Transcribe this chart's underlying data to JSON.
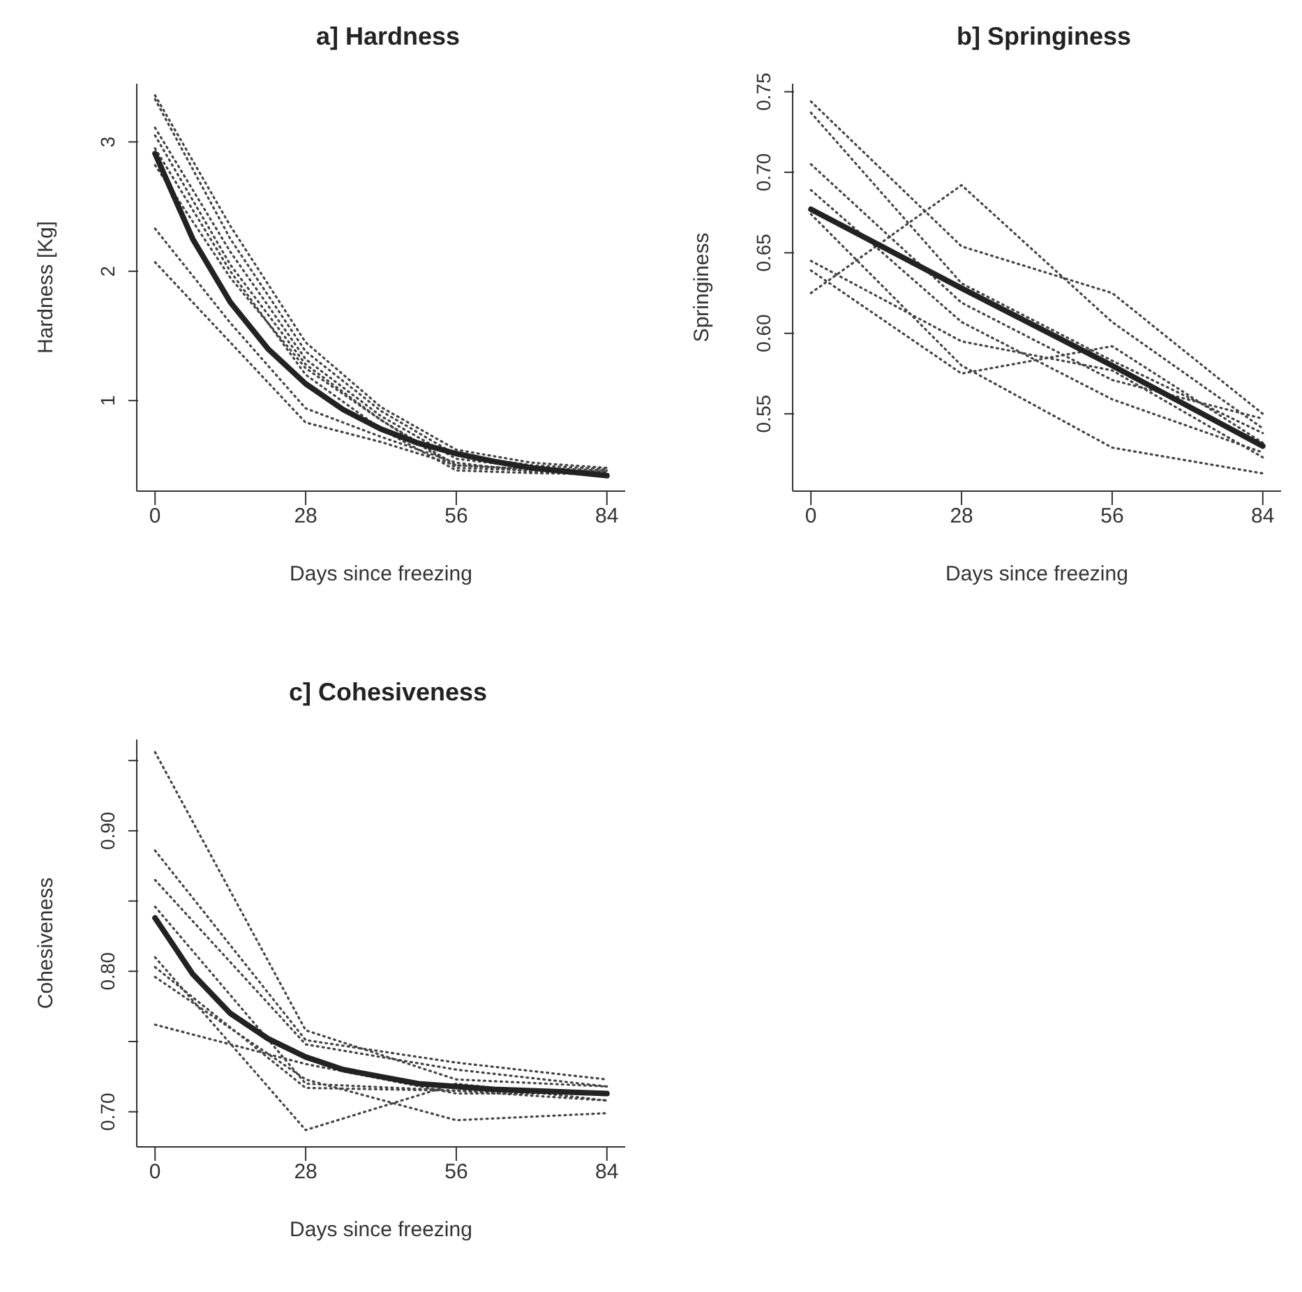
{
  "chart_data": [
    {
      "type": "line",
      "title": "a] Hardness",
      "xlabel": "Days since freezing",
      "ylabel": "Hardness [Kg]",
      "xlim": [
        -3.4,
        87.4
      ],
      "xticks": [
        0,
        28,
        56,
        84
      ],
      "ylim": [
        0.3,
        3.45
      ],
      "yticks": [
        1,
        2,
        3
      ],
      "marker": "none",
      "line_style": "dotted",
      "series": [
        {
          "color": "#444444",
          "x": [
            0,
            14,
            28,
            42,
            56,
            70,
            84
          ],
          "values": [
            3.36,
            2.35,
            1.45,
            0.95,
            0.62,
            0.52,
            0.48
          ]
        },
        {
          "color": "#444444",
          "x": [
            0,
            14,
            28,
            42,
            56,
            70,
            84
          ],
          "values": [
            3.33,
            2.25,
            1.38,
            0.92,
            0.58,
            0.5,
            0.47
          ]
        },
        {
          "color": "#444444",
          "x": [
            0,
            14,
            28,
            42,
            56,
            70,
            84
          ],
          "values": [
            3.11,
            2.15,
            1.32,
            0.88,
            0.55,
            0.48,
            0.46
          ]
        },
        {
          "color": "#444444",
          "x": [
            0,
            14,
            28,
            42,
            56,
            70,
            84
          ],
          "values": [
            3.05,
            2.05,
            1.28,
            0.85,
            0.5,
            0.47,
            0.45
          ]
        },
        {
          "color": "#444444",
          "x": [
            0,
            14,
            28,
            42,
            56,
            70,
            84
          ],
          "values": [
            2.82,
            1.95,
            1.25,
            0.85,
            0.48,
            0.46,
            0.44
          ]
        },
        {
          "color": "#444444",
          "x": [
            0,
            14,
            28,
            42,
            56,
            70,
            84
          ],
          "values": [
            2.95,
            2.0,
            1.2,
            0.78,
            0.46,
            0.44,
            0.43
          ]
        },
        {
          "color": "#444444",
          "x": [
            0,
            14,
            28,
            42,
            56,
            70,
            84
          ],
          "values": [
            2.33,
            1.6,
            0.94,
            0.72,
            0.52,
            0.45,
            0.44
          ]
        },
        {
          "color": "#444444",
          "x": [
            0,
            14,
            28,
            42,
            56,
            70,
            84
          ],
          "values": [
            2.07,
            1.45,
            0.83,
            0.68,
            0.5,
            0.47,
            0.45
          ]
        },
        {
          "color": "#222222",
          "line_style": "solid",
          "x": [
            0,
            7,
            14,
            21,
            28,
            35,
            42,
            49,
            56,
            63,
            70,
            77,
            84
          ],
          "values": [
            2.91,
            2.25,
            1.76,
            1.4,
            1.13,
            0.93,
            0.78,
            0.67,
            0.59,
            0.53,
            0.48,
            0.45,
            0.42
          ]
        }
      ]
    },
    {
      "type": "line",
      "title": "b] Springiness",
      "xlabel": "Days since freezing",
      "ylabel": "Springiness",
      "xlim": [
        -3.4,
        87.4
      ],
      "xticks": [
        0,
        28,
        56,
        84
      ],
      "ylim": [
        0.502,
        0.755
      ],
      "yticks": [
        0.55,
        {
          "value": 0.6,
          "label": "0.60"
        },
        0.65,
        {
          "value": 0.7,
          "label": "0.70"
        },
        0.75
      ],
      "marker": "none",
      "line_style": "dotted",
      "series": [
        {
          "color": "#444444",
          "x": [
            0,
            28,
            56,
            84
          ],
          "values": [
            0.744,
            0.654,
            0.625,
            0.55
          ]
        },
        {
          "color": "#444444",
          "x": [
            0,
            28,
            56,
            84
          ],
          "values": [
            0.737,
            0.631,
            0.583,
            0.538
          ]
        },
        {
          "color": "#444444",
          "x": [
            0,
            28,
            56,
            84
          ],
          "values": [
            0.705,
            0.619,
            0.571,
            0.547
          ]
        },
        {
          "color": "#444444",
          "x": [
            0,
            28,
            56,
            84
          ],
          "values": [
            0.689,
            0.607,
            0.559,
            0.526
          ]
        },
        {
          "color": "#444444",
          "x": [
            0,
            28,
            56,
            84
          ],
          "values": [
            0.674,
            0.58,
            0.529,
            0.513
          ]
        },
        {
          "color": "#444444",
          "x": [
            0,
            28,
            56,
            84
          ],
          "values": [
            0.625,
            0.692,
            0.607,
            0.541
          ]
        },
        {
          "color": "#444444",
          "x": [
            0,
            28,
            56,
            84
          ],
          "values": [
            0.645,
            0.595,
            0.577,
            0.523
          ]
        },
        {
          "color": "#444444",
          "x": [
            0,
            28,
            56,
            84
          ],
          "values": [
            0.639,
            0.575,
            0.592,
            0.532
          ]
        },
        {
          "color": "#222222",
          "line_style": "solid",
          "x": [
            0,
            28,
            56,
            84
          ],
          "values": [
            0.677,
            0.628,
            0.58,
            0.53
          ]
        }
      ]
    },
    {
      "type": "line",
      "title": "c] Cohesiveness",
      "xlabel": "Days since freezing",
      "ylabel": "Cohesiveness",
      "xlim": [
        -3.4,
        87.4
      ],
      "xticks": [
        0,
        28,
        56,
        84
      ],
      "ylim": [
        0.675,
        0.965
      ],
      "yticks": [
        {
          "value": 0.7,
          "label": "0.70"
        },
        {
          "value": 0.75,
          "label": null
        },
        {
          "value": 0.8,
          "label": "0.80"
        },
        {
          "value": 0.85,
          "label": null
        },
        {
          "value": 0.9,
          "label": "0.90"
        },
        {
          "value": 0.95,
          "label": null
        }
      ],
      "marker": "none",
      "line_style": "dotted",
      "series": [
        {
          "color": "#444444",
          "x": [
            0,
            28,
            56,
            84
          ],
          "values": [
            0.956,
            0.758,
            0.723,
            0.718
          ]
        },
        {
          "color": "#444444",
          "x": [
            0,
            28,
            56,
            84
          ],
          "values": [
            0.886,
            0.751,
            0.735,
            0.723
          ]
        },
        {
          "color": "#444444",
          "x": [
            0,
            28,
            56,
            84
          ],
          "values": [
            0.865,
            0.748,
            0.73,
            0.718
          ]
        },
        {
          "color": "#444444",
          "x": [
            0,
            28,
            56,
            84
          ],
          "values": [
            0.846,
            0.72,
            0.715,
            0.713
          ]
        },
        {
          "color": "#444444",
          "x": [
            0,
            28,
            56,
            84
          ],
          "values": [
            0.81,
            0.687,
            0.72,
            0.708
          ]
        },
        {
          "color": "#444444",
          "x": [
            0,
            28,
            56,
            84
          ],
          "values": [
            0.796,
            0.723,
            0.694,
            0.699
          ]
        },
        {
          "color": "#444444",
          "x": [
            0,
            28,
            56,
            84
          ],
          "values": [
            0.762,
            0.734,
            0.713,
            0.713
          ]
        },
        {
          "color": "#444444",
          "x": [
            0,
            28,
            56,
            84
          ],
          "values": [
            0.803,
            0.717,
            0.715,
            0.708
          ]
        },
        {
          "color": "#222222",
          "line_style": "solid",
          "x": [
            0,
            7,
            14,
            21,
            28,
            35,
            42,
            49,
            56,
            63,
            70,
            77,
            84
          ],
          "values": [
            0.838,
            0.798,
            0.77,
            0.752,
            0.739,
            0.73,
            0.725,
            0.72,
            0.718,
            0.716,
            0.715,
            0.714,
            0.713
          ]
        }
      ]
    }
  ]
}
